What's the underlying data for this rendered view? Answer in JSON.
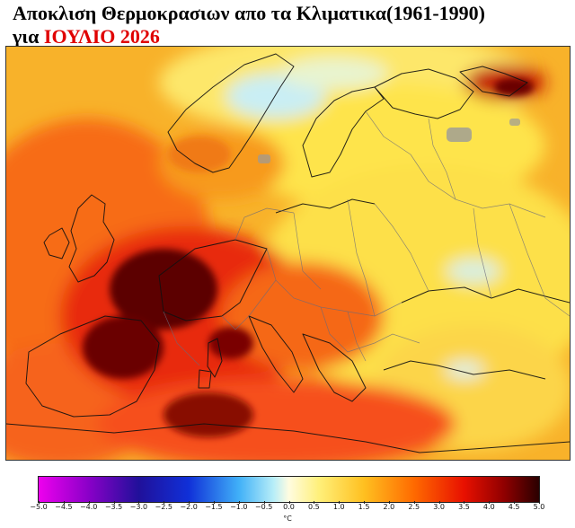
{
  "title": {
    "line1": "Αποκλιση Θερμοκρασιων απο τα Κλιματικα(1961-1990)",
    "line2_prefix": "για",
    "line2_highlight": "ΙΟΥΛΙΟ 2026"
  },
  "colorbar": {
    "unit": "°C",
    "ticks": [
      "−5.0",
      "−4.5",
      "−4.0",
      "−3.5",
      "−3.0",
      "−2.5",
      "−2.0",
      "−1.5",
      "−1.0",
      "−0.5",
      "0.0",
      "0.5",
      "1.0",
      "1.5",
      "2.0",
      "2.5",
      "3.0",
      "3.5",
      "4.0",
      "4.5",
      "5.0"
    ],
    "colors": [
      "#e000e0",
      "#a000d0",
      "#6000c0",
      "#2a00a0",
      "#1010c8",
      "#2050e0",
      "#2d8cf0",
      "#40c0f8",
      "#80e4f8",
      "#c8f2f6",
      "#fffad0",
      "#fff27a",
      "#ffe040",
      "#ffc020",
      "#ff9a10",
      "#ff6a00",
      "#ff3a00",
      "#e81000",
      "#b80000",
      "#780000",
      "#3a0000"
    ]
  }
}
